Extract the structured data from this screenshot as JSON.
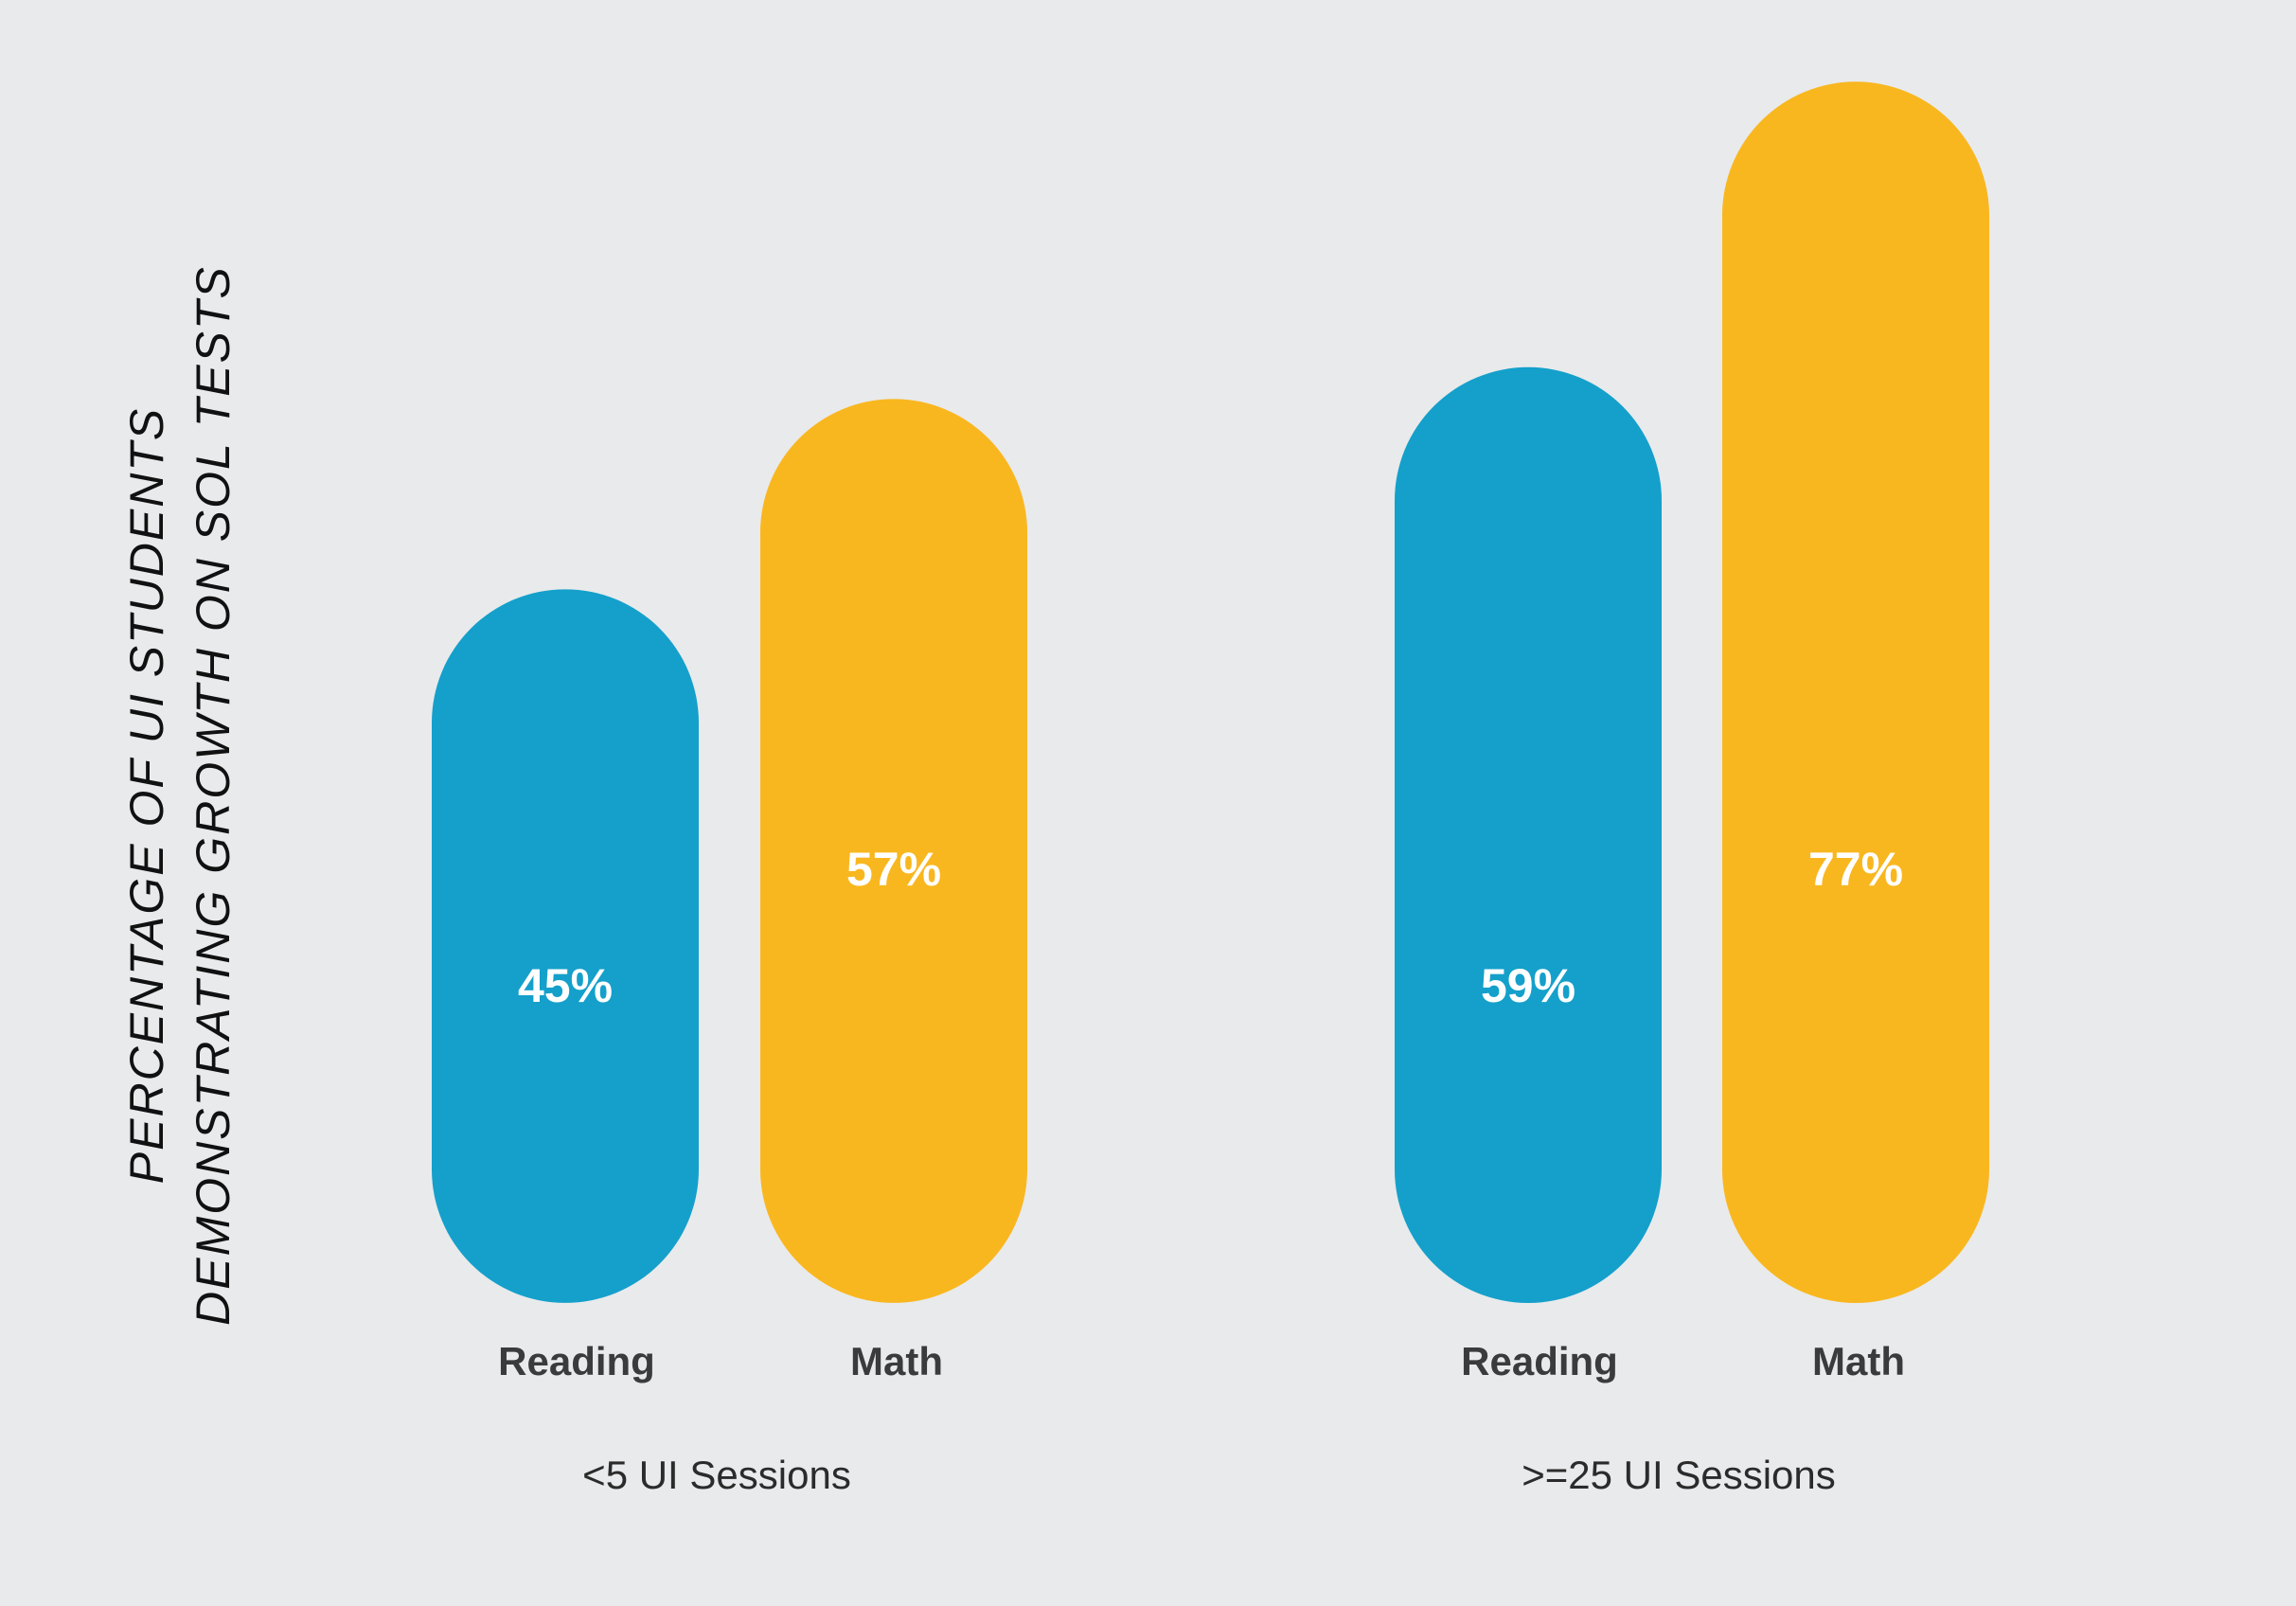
{
  "chart_data": {
    "type": "bar",
    "ylabel_lines": [
      "PERCENTAGE OF UI STUDENTS",
      "DEMONSTRATING GROWTH ON SOL TESTS"
    ],
    "groups": [
      {
        "label": "<5 UI Sessions",
        "bars": [
          {
            "category": "Reading",
            "value": 45,
            "label": "45%"
          },
          {
            "category": "Math",
            "value": 57,
            "label": "57%"
          }
        ]
      },
      {
        "label": ">=25 UI Sessions",
        "bars": [
          {
            "category": "Reading",
            "value": 59,
            "label": "59%"
          },
          {
            "category": "Math",
            "value": 77,
            "label": "77%"
          }
        ]
      }
    ],
    "ylim": [
      0,
      100
    ],
    "grid": false,
    "legend": "none"
  },
  "colors": {
    "background": "#e9eaec",
    "Reading": "#14a0cb",
    "Math": "#f9b71f",
    "value_label": "#ffffff",
    "category_label": "#3a3b3d",
    "group_label": "#2b2b2b"
  }
}
